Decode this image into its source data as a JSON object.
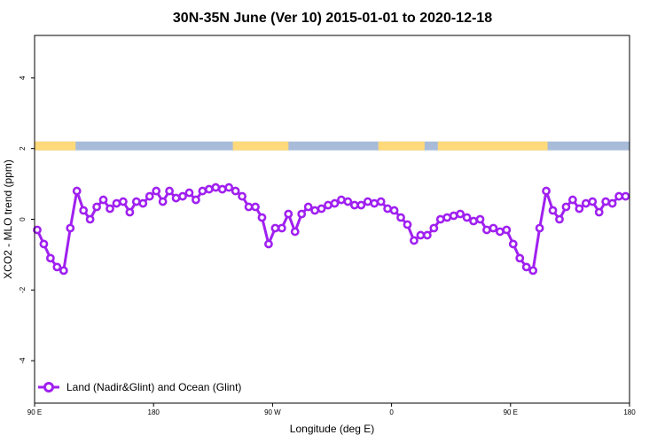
{
  "chart_data": {
    "type": "line",
    "title": "30N-35N June (Ver 10)   2015-01-01 to 2020-12-18",
    "xlabel": "Longitude (deg E)",
    "ylabel": "XCO2 - MLO trend (ppm)",
    "x_domain": [
      90,
      540
    ],
    "y_domain": [
      -5.2,
      5.2
    ],
    "x_ticks": [
      {
        "value": 90,
        "label": "90 E"
      },
      {
        "value": 180,
        "label": "180"
      },
      {
        "value": 270,
        "label": "90 W"
      },
      {
        "value": 360,
        "label": "0"
      },
      {
        "value": 450,
        "label": "90 E"
      },
      {
        "value": 540,
        "label": "180"
      }
    ],
    "y_ticks": [
      {
        "value": -4,
        "label": "-4"
      },
      {
        "value": -2,
        "label": "-2"
      },
      {
        "value": 0,
        "label": "0"
      },
      {
        "value": 2,
        "label": "2"
      },
      {
        "value": 4,
        "label": "4"
      }
    ],
    "surface_band": {
      "y_range": [
        1.95,
        2.2
      ],
      "land_color": "#FFD97A",
      "ocean_color": "#A8BCDA",
      "land_segments": [
        [
          90,
          121
        ],
        [
          240,
          282
        ],
        [
          350,
          385
        ],
        [
          395,
          478
        ]
      ]
    },
    "series": [
      {
        "name": "Land (Nadir&Glint) and Ocean (Glint)",
        "color": "#A020F0",
        "x": [
          92,
          97,
          102,
          107,
          112,
          117,
          122,
          127,
          132,
          137,
          142,
          147,
          152,
          157,
          162,
          167,
          172,
          177,
          182,
          187,
          192,
          197,
          202,
          207,
          212,
          217,
          222,
          227,
          232,
          237,
          242,
          247,
          252,
          257,
          262,
          267,
          272,
          277,
          282,
          287,
          292,
          297,
          302,
          307,
          312,
          317,
          322,
          327,
          332,
          337,
          342,
          347,
          352,
          357,
          362,
          367,
          372,
          377,
          382,
          387,
          392,
          397,
          402,
          407,
          412,
          417,
          422,
          427,
          432,
          437,
          442,
          447,
          452,
          457,
          462,
          467,
          472,
          477,
          482,
          487,
          492,
          497,
          502,
          507,
          512,
          517,
          522,
          527,
          532,
          537
        ],
        "y": [
          -0.3,
          -0.7,
          -1.1,
          -1.35,
          -1.45,
          -0.25,
          0.8,
          0.25,
          0.0,
          0.35,
          0.55,
          0.3,
          0.45,
          0.5,
          0.2,
          0.5,
          0.45,
          0.65,
          0.8,
          0.5,
          0.8,
          0.6,
          0.65,
          0.75,
          0.55,
          0.8,
          0.85,
          0.9,
          0.85,
          0.9,
          0.8,
          0.65,
          0.35,
          0.35,
          0.05,
          -0.7,
          -0.25,
          -0.25,
          0.15,
          -0.35,
          0.15,
          0.35,
          0.25,
          0.3,
          0.4,
          0.45,
          0.55,
          0.5,
          0.4,
          0.4,
          0.5,
          0.45,
          0.5,
          0.3,
          0.25,
          0.05,
          -0.15,
          -0.6,
          -0.45,
          -0.45,
          -0.25,
          0.0,
          0.05,
          0.1,
          0.15,
          0.05,
          -0.05,
          0.0,
          -0.3,
          -0.25,
          -0.35,
          -0.3,
          -0.7,
          -1.1,
          -1.35,
          -1.45,
          -0.25,
          0.8,
          0.25,
          0.0,
          0.35,
          0.55,
          0.3,
          0.45,
          0.5,
          0.2,
          0.5,
          0.45,
          0.65,
          0.65
        ]
      }
    ],
    "legend": {
      "position": "bottom-left"
    },
    "grid": false
  }
}
